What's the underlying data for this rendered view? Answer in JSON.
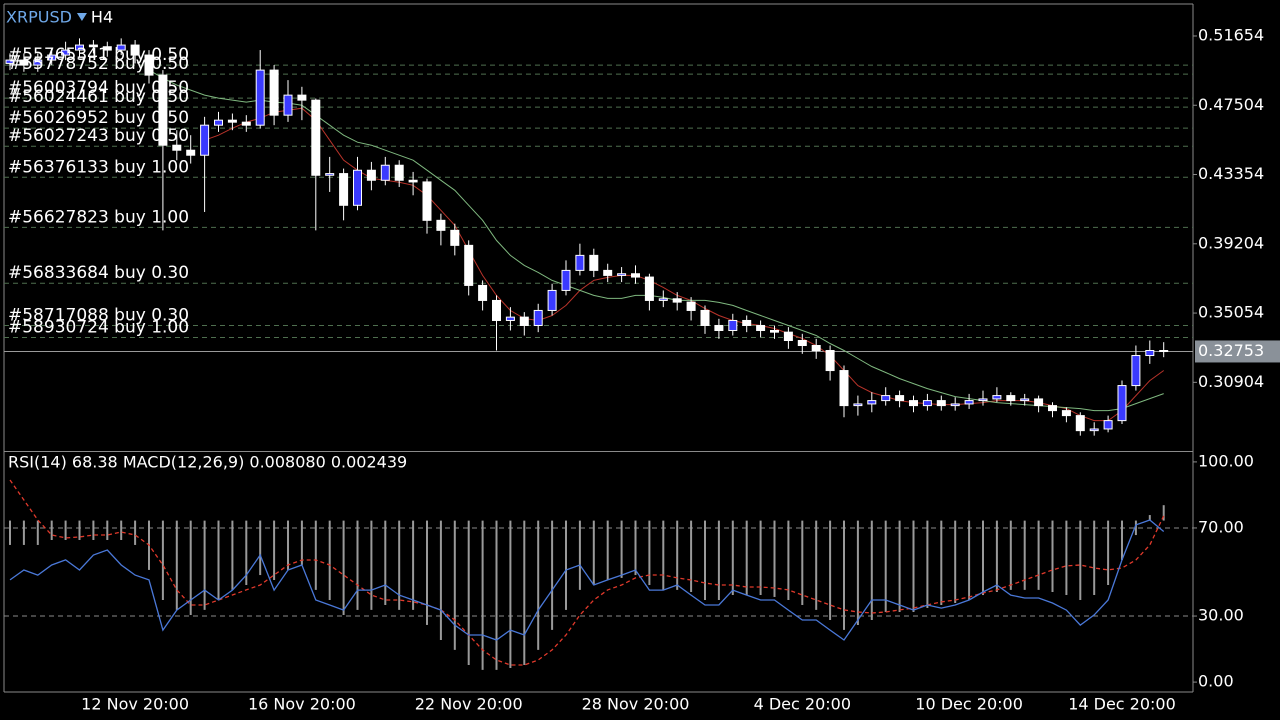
{
  "chart_data": [
    {
      "type": "candlestick",
      "symbol": "XRPUSD",
      "timeframe": "H4",
      "categories": [
        null,
        null,
        null,
        null,
        null,
        null,
        null,
        null,
        null,
        "12 Nov 20:00",
        null,
        null,
        null,
        null,
        null,
        null,
        null,
        null,
        null,
        null,
        null,
        "16 Nov 20:00",
        null,
        null,
        null,
        null,
        null,
        null,
        null,
        null,
        null,
        null,
        null,
        "22 Nov 20:00",
        null,
        null,
        null,
        null,
        null,
        null,
        null,
        null,
        null,
        null,
        null,
        "28 Nov 20:00",
        null,
        null,
        null,
        null,
        null,
        null,
        null,
        null,
        null,
        null,
        null,
        "4 Dec 20:00",
        null,
        null,
        null,
        null,
        null,
        null,
        null,
        null,
        null,
        null,
        null,
        "10 Dec 20:00",
        null,
        null,
        null,
        null,
        null,
        null,
        null,
        null,
        null,
        null,
        "14 Dec 20:00",
        null,
        null,
        null
      ],
      "open": [
        0.5001,
        0.5021,
        0.4991,
        0.5021,
        0.5051,
        0.5081,
        0.5111,
        0.5101,
        0.5081,
        0.5111,
        0.5051,
        0.4931,
        0.4511,
        0.4481,
        0.4451,
        0.4631,
        0.4661,
        0.4649,
        0.4631,
        0.4961,
        0.4691,
        0.4811,
        0.4781,
        0.4331,
        0.4341,
        0.4151,
        0.4361,
        0.4301,
        0.4391,
        0.4301,
        0.4291,
        0.4061,
        0.4001,
        0.3911,
        0.3671,
        0.3581,
        0.3461,
        0.3481,
        0.3431,
        0.3521,
        0.3641,
        0.3761,
        0.3851,
        0.3761,
        0.3731,
        0.3741,
        0.3721,
        0.3581,
        0.3591,
        0.3571,
        0.3521,
        0.3431,
        0.3401,
        0.3461,
        0.3431,
        0.3401,
        0.3391,
        0.3341,
        0.3311,
        0.3281,
        0.3161,
        0.2951,
        0.2961,
        0.2981,
        0.3011,
        0.2981,
        0.2951,
        0.2981,
        0.2951,
        0.2961,
        0.2981,
        0.2991,
        0.3011,
        0.2981,
        0.2991,
        0.2951,
        0.2921,
        0.2891,
        0.2801,
        0.2811,
        0.2861,
        0.3071,
        0.3251,
        0.3281
      ],
      "high": [
        0.5061,
        0.5061,
        0.5061,
        0.5091,
        0.5131,
        0.5151,
        0.5141,
        0.5131,
        0.5151,
        0.5141,
        0.5081,
        0.4961,
        0.4601,
        0.4571,
        0.4681,
        0.4711,
        0.4701,
        0.4691,
        0.5081,
        0.4991,
        0.4901,
        0.4861,
        0.4791,
        0.4441,
        0.4371,
        0.4441,
        0.4411,
        0.4441,
        0.4421,
        0.4351,
        0.4311,
        0.4101,
        0.4041,
        0.3941,
        0.3701,
        0.3611,
        0.3541,
        0.3511,
        0.3561,
        0.3681,
        0.3821,
        0.3921,
        0.3891,
        0.3801,
        0.3781,
        0.3791,
        0.3741,
        0.3641,
        0.3631,
        0.3601,
        0.3551,
        0.3471,
        0.3501,
        0.3491,
        0.3461,
        0.3431,
        0.3421,
        0.3381,
        0.3351,
        0.3311,
        0.3191,
        0.3011,
        0.3031,
        0.3061,
        0.3041,
        0.3011,
        0.3021,
        0.3011,
        0.3001,
        0.3021,
        0.3041,
        0.3061,
        0.3031,
        0.3021,
        0.3011,
        0.2971,
        0.2941,
        0.2911,
        0.2851,
        0.2891,
        0.3101,
        0.3311,
        0.3341,
        0.3331
      ],
      "low": [
        0.4961,
        0.4951,
        0.4951,
        0.4991,
        0.5021,
        0.5041,
        0.5061,
        0.5041,
        0.5051,
        0.5001,
        0.4881,
        0.4001,
        0.4421,
        0.4401,
        0.4111,
        0.4591,
        0.4601,
        0.4591,
        0.4611,
        0.4631,
        0.4651,
        0.4661,
        0.4001,
        0.4231,
        0.4061,
        0.4121,
        0.4241,
        0.4271,
        0.4261,
        0.4211,
        0.3981,
        0.3911,
        0.3851,
        0.3611,
        0.3521,
        0.3281,
        0.3401,
        0.3371,
        0.3391,
        0.3491,
        0.3611,
        0.3731,
        0.3721,
        0.3691,
        0.3691,
        0.3681,
        0.3521,
        0.3541,
        0.3521,
        0.3461,
        0.3381,
        0.3351,
        0.3371,
        0.3391,
        0.3361,
        0.3351,
        0.3291,
        0.3261,
        0.3231,
        0.3101,
        0.2881,
        0.2891,
        0.2911,
        0.2951,
        0.2941,
        0.2911,
        0.2921,
        0.2921,
        0.2921,
        0.2931,
        0.2951,
        0.2971,
        0.2951,
        0.2951,
        0.2911,
        0.2881,
        0.2851,
        0.2771,
        0.2771,
        0.2791,
        0.2841,
        0.3041,
        0.3201,
        0.3241
      ],
      "close": [
        0.5021,
        0.4991,
        0.5021,
        0.5051,
        0.5081,
        0.5111,
        0.5101,
        0.5081,
        0.5111,
        0.5051,
        0.4931,
        0.4511,
        0.4481,
        0.4451,
        0.4631,
        0.4661,
        0.4649,
        0.4631,
        0.4961,
        0.4691,
        0.4811,
        0.4781,
        0.4331,
        0.4341,
        0.4151,
        0.4361,
        0.4301,
        0.4391,
        0.4301,
        0.4291,
        0.4061,
        0.4001,
        0.3911,
        0.3671,
        0.3581,
        0.3461,
        0.3481,
        0.3431,
        0.3521,
        0.3641,
        0.3761,
        0.3851,
        0.3761,
        0.3731,
        0.3741,
        0.3721,
        0.3581,
        0.3591,
        0.3571,
        0.3521,
        0.3431,
        0.3401,
        0.3461,
        0.3431,
        0.3401,
        0.3391,
        0.3341,
        0.3311,
        0.3281,
        0.3161,
        0.2951,
        0.2961,
        0.2981,
        0.3011,
        0.2981,
        0.2951,
        0.2981,
        0.2951,
        0.2961,
        0.2981,
        0.2991,
        0.3011,
        0.2981,
        0.2991,
        0.2951,
        0.2921,
        0.2891,
        0.2801,
        0.2811,
        0.2861,
        0.3071,
        0.3251,
        0.3281,
        0.3275
      ],
      "up_color": "#3a3aff",
      "down_color": "#ffffff",
      "wick_color": "#ffffff",
      "series": [
        {
          "color": "#b8332a",
          "values": [
            null,
            null,
            null,
            null,
            null,
            null,
            null,
            null,
            null,
            null,
            null,
            null,
            null,
            null,
            0.4541,
            0.4571,
            0.4613,
            0.4649,
            0.4673,
            0.4709,
            0.4721,
            0.4733,
            0.4661,
            0.4541,
            0.4421,
            0.4361,
            0.4313,
            0.4301,
            0.4289,
            0.4271,
            0.4211,
            0.4121,
            0.4031,
            0.3881,
            0.3731,
            0.3611,
            0.3521,
            0.3473,
            0.3461,
            0.3491,
            0.3551,
            0.3641,
            0.3701,
            0.3719,
            0.3731,
            0.3731,
            0.3701,
            0.3659,
            0.3611,
            0.3581,
            0.3533,
            0.3491,
            0.3461,
            0.3443,
            0.3431,
            0.3413,
            0.3383,
            0.3353,
            0.3311,
            0.3251,
            0.3161,
            0.3071,
            0.3029,
            0.3005,
            0.2981,
            0.2969,
            0.2963,
            0.2957,
            0.2957,
            0.2963,
            0.2969,
            0.2981,
            0.2981,
            0.2981,
            0.2969,
            0.2951,
            0.2933,
            0.2891,
            0.2861,
            0.2861,
            0.2921,
            0.3011,
            0.3101,
            0.3161
          ]
        },
        {
          "color": "#7fb87f",
          "values": [
            null,
            null,
            null,
            null,
            null,
            null,
            null,
            null,
            null,
            null,
            0.4961,
            0.4913,
            0.4871,
            0.4841,
            0.4811,
            0.4793,
            0.4781,
            0.4769,
            0.4781,
            0.4769,
            0.4763,
            0.4751,
            0.4691,
            0.4631,
            0.4571,
            0.4529,
            0.4511,
            0.4481,
            0.4451,
            0.4421,
            0.4361,
            0.4301,
            0.4241,
            0.4151,
            0.4061,
            0.3941,
            0.3851,
            0.3791,
            0.3749,
            0.3701,
            0.3671,
            0.3641,
            0.3611,
            0.3593,
            0.3593,
            0.3611,
            0.3611,
            0.3599,
            0.3581,
            0.3581,
            0.3581,
            0.3569,
            0.3551,
            0.3521,
            0.3491,
            0.3461,
            0.3431,
            0.3401,
            0.3371,
            0.3323,
            0.3281,
            0.3233,
            0.3185,
            0.3149,
            0.3113,
            0.3083,
            0.3053,
            0.3029,
            0.3005,
            0.2993,
            0.2981,
            0.2969,
            0.2963,
            0.2957,
            0.2951,
            0.2945,
            0.2939,
            0.2933,
            0.2921,
            0.2921,
            0.2933,
            0.2963,
            0.2993,
            0.3023
          ]
        }
      ],
      "orders": [
        {
          "label": "#55765341 buy 0.50",
          "price": 0.4991
        },
        {
          "label": "#55778752 buy 0.50",
          "price": 0.4937
        },
        {
          "label": "#56003794 buy 0.50",
          "price": 0.4793
        },
        {
          "label": "#56024461 buy 0.50",
          "price": 0.4739
        },
        {
          "label": "#56026952 buy 0.50",
          "price": 0.4613
        },
        {
          "label": "#56027243 buy 0.50",
          "price": 0.4505
        },
        {
          "label": "#56376133 buy 1.00",
          "price": 0.4319
        },
        {
          "label": "#56627823 buy 1.00",
          "price": 0.4019
        },
        {
          "label": "#56833684 buy 0.30",
          "price": 0.3684
        },
        {
          "label": "#58717088 buy 0.30",
          "price": 0.3431
        },
        {
          "label": "#58930724 buy 1.00",
          "price": 0.3359
        }
      ],
      "order_line_color": "#4f6f4f",
      "current_price": 0.32753,
      "ylim": [
        0.2676,
        0.5357
      ],
      "yticks": [
        0.51654,
        0.47504,
        0.43354,
        0.39204,
        0.35054,
        0.30904
      ]
    },
    {
      "type": "indicator",
      "title": "RSI(14) 68.38 MACD(12,26,9) 0.008080 0.002439",
      "series": [
        {
          "kind": "histogram",
          "axis": "y2",
          "color": "#9a9a9a",
          "values": [
            -0.0128,
            -0.0128,
            -0.0128,
            -0.0102,
            -0.0102,
            -0.0102,
            -0.0102,
            -0.0102,
            -0.0102,
            -0.0128,
            -0.0259,
            -0.0417,
            -0.0469,
            -0.0496,
            -0.0469,
            -0.0417,
            -0.0364,
            -0.0338,
            -0.0286,
            -0.0312,
            -0.0259,
            -0.0233,
            -0.0364,
            -0.0417,
            -0.0496,
            -0.0469,
            -0.0469,
            -0.0443,
            -0.0469,
            -0.0469,
            -0.0548,
            -0.0627,
            -0.0679,
            -0.0758,
            -0.0784,
            -0.0784,
            -0.0774,
            -0.0758,
            -0.0679,
            -0.0574,
            -0.0469,
            -0.0364,
            -0.0338,
            -0.0312,
            -0.0301,
            -0.0286,
            -0.0338,
            -0.0364,
            -0.0364,
            -0.0375,
            -0.0417,
            -0.0417,
            -0.0391,
            -0.0391,
            -0.0391,
            -0.0401,
            -0.0417,
            -0.0443,
            -0.0469,
            -0.0522,
            -0.0574,
            -0.0548,
            -0.0522,
            -0.048,
            -0.048,
            -0.048,
            -0.0459,
            -0.0443,
            -0.0433,
            -0.0417,
            -0.0391,
            -0.0375,
            -0.0364,
            -0.0364,
            -0.0364,
            -0.0375,
            -0.0391,
            -0.0417,
            -0.0391,
            -0.0338,
            -0.0207,
            -0.0076,
            0.0029,
            0.00808
          ]
        },
        {
          "kind": "dashed",
          "axis": "y2",
          "color": "#e0392b",
          "values": [
            0.0213,
            0.0108,
            0.0003,
            -0.0076,
            -0.0091,
            -0.0086,
            -0.0076,
            -0.0076,
            -0.006,
            -0.0076,
            -0.0128,
            -0.0233,
            -0.0364,
            -0.0443,
            -0.0443,
            -0.0417,
            -0.0391,
            -0.0364,
            -0.0338,
            -0.0286,
            -0.0233,
            -0.0207,
            -0.0207,
            -0.0233,
            -0.0286,
            -0.0338,
            -0.0391,
            -0.0417,
            -0.0417,
            -0.0427,
            -0.0443,
            -0.0469,
            -0.0522,
            -0.0601,
            -0.0679,
            -0.0732,
            -0.0758,
            -0.0758,
            -0.0732,
            -0.0679,
            -0.0601,
            -0.0496,
            -0.0417,
            -0.0364,
            -0.0338,
            -0.0301,
            -0.0286,
            -0.0286,
            -0.0301,
            -0.0312,
            -0.0328,
            -0.0338,
            -0.0338,
            -0.0349,
            -0.0349,
            -0.0354,
            -0.0364,
            -0.0391,
            -0.0417,
            -0.0443,
            -0.0469,
            -0.048,
            -0.0485,
            -0.048,
            -0.0469,
            -0.0459,
            -0.0443,
            -0.0427,
            -0.0417,
            -0.0401,
            -0.038,
            -0.0364,
            -0.0338,
            -0.0312,
            -0.0286,
            -0.0259,
            -0.0238,
            -0.0233,
            -0.0249,
            -0.0259,
            -0.0249,
            -0.0207,
            -0.0128,
            0.002439
          ]
        },
        {
          "kind": "line",
          "color": "#4a78d8",
          "values": [
            46.4,
            50.9,
            48.6,
            53.2,
            55.5,
            50.9,
            57.7,
            60,
            53.2,
            48.6,
            46.4,
            23.6,
            32.7,
            37.3,
            41.8,
            37.3,
            41.8,
            48.6,
            57.7,
            41.8,
            50.9,
            53.2,
            37.3,
            35,
            32.7,
            41.8,
            41.8,
            44.1,
            39.5,
            37.3,
            35,
            32.7,
            25.9,
            21.4,
            21.4,
            19.1,
            23.6,
            21.4,
            32.7,
            41.8,
            50.9,
            53.2,
            44.1,
            46.4,
            48.6,
            50.9,
            41.8,
            41.8,
            44.1,
            39.5,
            35,
            35,
            41.8,
            39.5,
            37.3,
            37.3,
            32.7,
            28.2,
            28.2,
            23.6,
            19.1,
            28.2,
            37.3,
            37.3,
            35,
            32.7,
            35,
            33.6,
            35,
            37.3,
            40.9,
            44.1,
            39.5,
            38.2,
            38.2,
            35.9,
            32.7,
            25.9,
            30.5,
            37.3,
            55.5,
            71.4,
            73.6,
            68.38
          ]
        }
      ],
      "ylim": [
        -4.5,
        104.5
      ],
      "yticks": [
        {
          "value": 100,
          "label": "100.00"
        },
        {
          "value": 70,
          "label": "70.00"
        },
        {
          "value": 30,
          "label": "30.00"
        },
        {
          "value": 0,
          "label": "0.00"
        }
      ],
      "grid": true,
      "y2lim": [
        -0.09,
        0.036
      ]
    }
  ]
}
